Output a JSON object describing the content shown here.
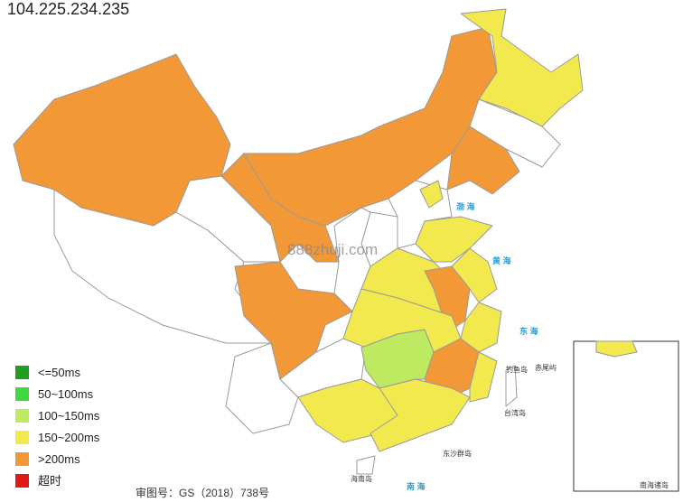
{
  "title": "104.225.234.235",
  "legend": [
    {
      "label": "<=50ms",
      "color": "#1f9e1f"
    },
    {
      "label": "50~100ms",
      "color": "#3fd93f"
    },
    {
      "label": "100~150ms",
      "color": "#bdea60"
    },
    {
      "label": "150~200ms",
      "color": "#f2e94e"
    },
    {
      "label": ">200ms",
      "color": "#f39837"
    },
    {
      "label": "超时",
      "color": "#e01818"
    }
  ],
  "watermark": "888zhuji.com",
  "map_labels": [
    "渤 海",
    "黄 海",
    "东 海",
    "台湾岛",
    "钓鱼岛",
    "赤尾屿",
    "东沙群岛",
    "海南岛",
    "南 海",
    "南海诸岛"
  ],
  "footer": "审图号：GS（2018）738号"
}
